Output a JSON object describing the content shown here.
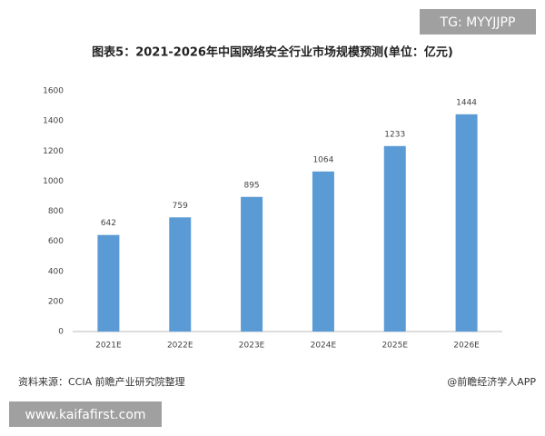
{
  "chart_data": {
    "type": "bar",
    "title": "图表5：2021-2026年中国网络安全行业市场规模预测(单位：亿元)",
    "categories": [
      "2021E",
      "2022E",
      "2023E",
      "2024E",
      "2025E",
      "2026E"
    ],
    "values": [
      642,
      759,
      895,
      1064,
      1233,
      1444
    ],
    "color": "#5b9bd5",
    "ylim": [
      0,
      1600
    ],
    "yticks": [
      0,
      200,
      400,
      600,
      800,
      1000,
      1200,
      1400,
      1600
    ],
    "grid": false
  },
  "source": "资料来源：CCIA 前瞻产业研究院整理",
  "credit": "@前瞻经济学人APP",
  "watermarks": [
    "TG: MYYJJPP",
    "www.kaifafirst.com"
  ]
}
